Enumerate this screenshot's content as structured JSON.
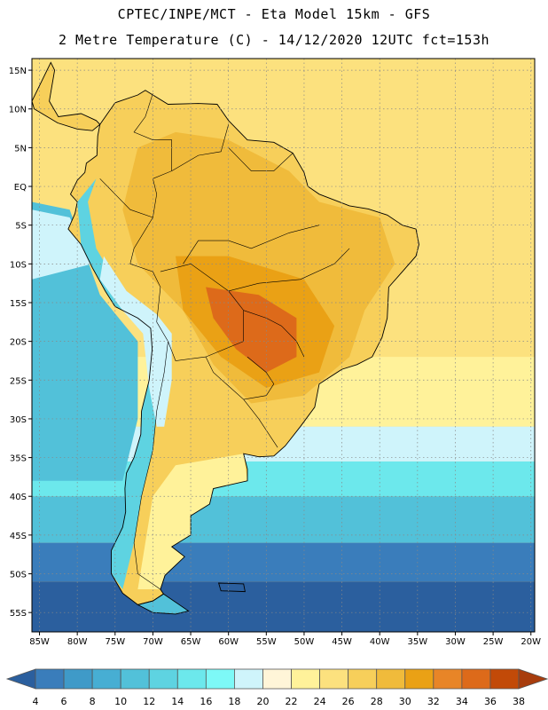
{
  "header": {
    "title_line1": "CPTEC/INPE/MCT -  Eta Model 15km - GFS",
    "title_line2": "2 Metre Temperature (C) - 14/12/2020 12UTC fct=153h"
  },
  "map": {
    "lat_labels": [
      "15N",
      "10N",
      "5N",
      "EQ",
      "5S",
      "10S",
      "15S",
      "20S",
      "25S",
      "30S",
      "35S",
      "40S",
      "45S",
      "50S",
      "55S"
    ],
    "lon_labels": [
      "85W",
      "80W",
      "75W",
      "70W",
      "65W",
      "60W",
      "55W",
      "50W",
      "45W",
      "40W",
      "35W",
      "30W",
      "25W",
      "20W"
    ],
    "lat_values": [
      15,
      10,
      5,
      0,
      -5,
      -10,
      -15,
      -20,
      -25,
      -30,
      -35,
      -40,
      -45,
      -50,
      -55
    ],
    "lon_values": [
      -85,
      -80,
      -75,
      -70,
      -65,
      -60,
      -55,
      -50,
      -45,
      -40,
      -35,
      -30,
      -25,
      -20
    ],
    "extent": {
      "lon_min": -86,
      "lon_max": -19.5,
      "lat_min": -57.5,
      "lat_max": 16.5
    }
  },
  "colorbar": {
    "labels": [
      "4",
      "6",
      "8",
      "10",
      "12",
      "14",
      "16",
      "18",
      "20",
      "22",
      "24",
      "26",
      "28",
      "30",
      "32",
      "34",
      "36",
      "38"
    ],
    "colors": [
      "#2b5f9e",
      "#3a7dbb",
      "#3f9ac8",
      "#47aed3",
      "#52c1d9",
      "#5ed3e1",
      "#6ce8ec",
      "#7df9f7",
      "#cff4fb",
      "#fff5d8",
      "#fff29a",
      "#fce17e",
      "#f7cf5a",
      "#f0bb3b",
      "#eaa115",
      "#e88527",
      "#dd6a1a",
      "#c24a08",
      "#a83d0d"
    ]
  },
  "regions": [
    {
      "name": "ocean-south-deep",
      "color": "#2b5f9e"
    },
    {
      "name": "ocean-south-mid",
      "color": "#3a7dbb"
    },
    {
      "name": "ocean-south-cyan",
      "color": "#52c1d9"
    },
    {
      "name": "ocean-light-cyan",
      "color": "#6ce8ec"
    },
    {
      "name": "ocean-pale",
      "color": "#cff4fb"
    },
    {
      "name": "ocean-warm",
      "color": "#fff29a"
    },
    {
      "name": "ocean-tropical",
      "color": "#fce17e"
    },
    {
      "name": "land-warm",
      "color": "#f7cf5a"
    },
    {
      "name": "land-hot",
      "color": "#f0bb3b"
    },
    {
      "name": "land-very-hot",
      "color": "#eaa115"
    },
    {
      "name": "land-extreme",
      "color": "#dd6a1a"
    },
    {
      "name": "andes-cold",
      "color": "#5ed3e1"
    }
  ]
}
